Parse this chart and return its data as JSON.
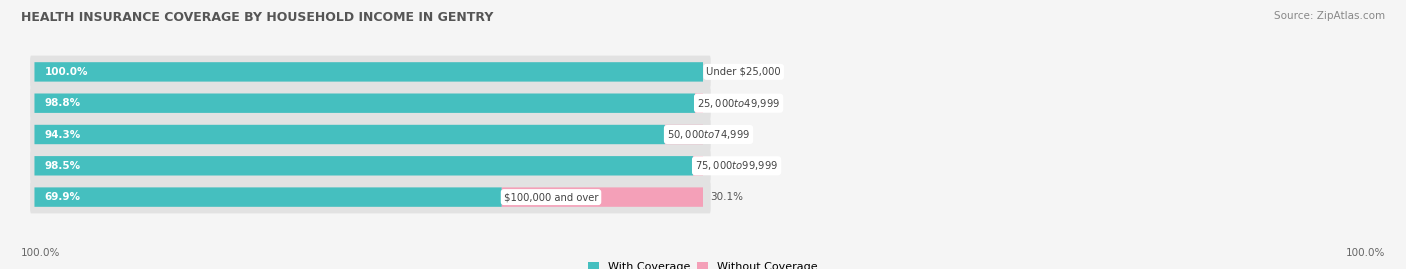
{
  "title": "HEALTH INSURANCE COVERAGE BY HOUSEHOLD INCOME IN GENTRY",
  "source": "Source: ZipAtlas.com",
  "categories": [
    "Under $25,000",
    "$25,000 to $49,999",
    "$50,000 to $74,999",
    "$75,000 to $99,999",
    "$100,000 and over"
  ],
  "with_coverage": [
    100.0,
    98.8,
    94.3,
    98.5,
    69.9
  ],
  "without_coverage": [
    0.0,
    1.2,
    5.7,
    1.5,
    30.1
  ],
  "color_with": "#45bfbf",
  "color_with_light": "#7dd6d6",
  "color_without": "#f08080",
  "color_without_pink": "#f4a0b8",
  "bar_bg": "#e2e2e2",
  "background_color": "#f5f5f5",
  "legend_with": "With Coverage",
  "legend_without": "Without Coverage",
  "x_tick_left": "100.0%",
  "x_tick_right": "100.0%"
}
